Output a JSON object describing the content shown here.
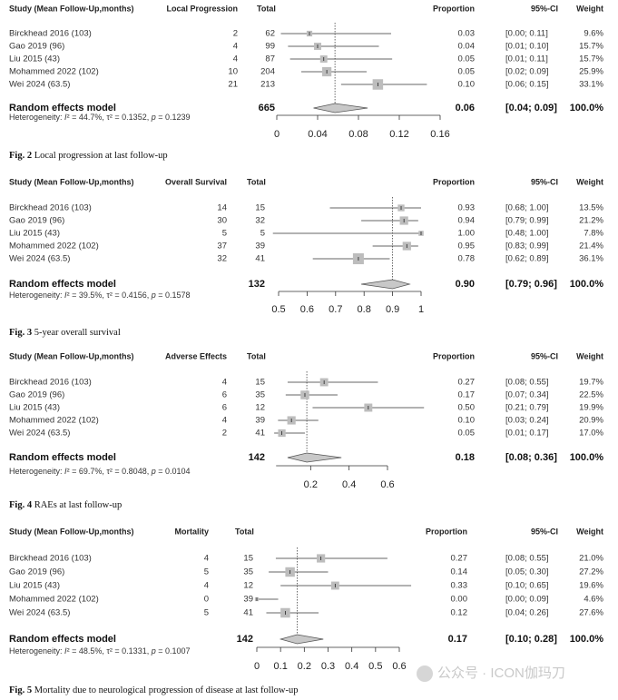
{
  "common": {
    "study_header": "Study (Mean Follow-Up,months)",
    "total_header": "Total",
    "proportion_header": "Proportion",
    "ci_header": "95%-CI",
    "weight_header": "Weight",
    "re_label": "Random effects model",
    "het_prefix": "Heterogeneity: ",
    "studies": [
      "Birckhead 2016 (103)",
      "Gao 2019 (96)",
      "Liu 2015 (43)",
      "Mohammed 2022 (102)",
      "Wei 2024 (63.5)"
    ]
  },
  "watermark": "公众号 · ICON伽玛刀",
  "chart_data": [
    {
      "type": "forest",
      "caption_num": "Fig. 2",
      "caption": "Local progression at last follow-up",
      "event_header": "Local Progression",
      "events": [
        "2",
        "4",
        "4",
        "10",
        "21"
      ],
      "totals": [
        "62",
        "99",
        "87",
        "204",
        "213"
      ],
      "proportions": [
        "0.03",
        "0.04",
        "0.05",
        "0.05",
        "0.10"
      ],
      "estimates": [
        0.032,
        0.04,
        0.046,
        0.049,
        0.099
      ],
      "ci_text": [
        "[0.00; 0.11]",
        "[0.01; 0.10]",
        "[0.01; 0.11]",
        "[0.02; 0.09]",
        "[0.06; 0.15]"
      ],
      "ci": [
        [
          0.004,
          0.112
        ],
        [
          0.011,
          0.1
        ],
        [
          0.013,
          0.113
        ],
        [
          0.024,
          0.088
        ],
        [
          0.063,
          0.147
        ]
      ],
      "weights": [
        "9.6%",
        "15.7%",
        "15.7%",
        "25.9%",
        "33.1%"
      ],
      "weight_values": [
        9.6,
        15.7,
        15.7,
        25.9,
        33.1
      ],
      "pooled": {
        "total": "665",
        "proportion": "0.06",
        "ci_text": "[0.04; 0.09]",
        "weight": "100.0%",
        "estimate": 0.057,
        "ci": [
          0.036,
          0.089
        ]
      },
      "heterogeneity": {
        "i2": "44.7%",
        "tau2": "0.1352",
        "p": "0.1239"
      },
      "xlim": [
        0,
        0.16
      ],
      "ticks": [
        "0",
        "0.04",
        "0.08",
        "0.12",
        "0.16"
      ],
      "tick_values": [
        0,
        0.04,
        0.08,
        0.12,
        0.16
      ]
    },
    {
      "type": "forest",
      "caption_num": "Fig. 3",
      "caption": "5-year overall survival",
      "event_header": "Overall Survival",
      "events": [
        "14",
        "30",
        "5",
        "37",
        "32"
      ],
      "totals": [
        "15",
        "32",
        "5",
        "39",
        "41"
      ],
      "proportions": [
        "0.93",
        "0.94",
        "1.00",
        "0.95",
        "0.78"
      ],
      "estimates": [
        0.93,
        0.94,
        1.0,
        0.95,
        0.78
      ],
      "ci_text": [
        "[0.68; 1.00]",
        "[0.79; 0.99]",
        "[0.48; 1.00]",
        "[0.83; 0.99]",
        "[0.62; 0.89]"
      ],
      "ci": [
        [
          0.68,
          1.0
        ],
        [
          0.79,
          0.99
        ],
        [
          0.48,
          1.0
        ],
        [
          0.83,
          0.99
        ],
        [
          0.62,
          0.89
        ]
      ],
      "weights": [
        "13.5%",
        "21.2%",
        "7.8%",
        "21.4%",
        "36.1%"
      ],
      "weight_values": [
        13.5,
        21.2,
        7.8,
        21.4,
        36.1
      ],
      "pooled": {
        "total": "132",
        "proportion": "0.90",
        "ci_text": "[0.79; 0.96]",
        "weight": "100.0%",
        "estimate": 0.9,
        "ci": [
          0.79,
          0.96
        ]
      },
      "heterogeneity": {
        "i2": "39.5%",
        "tau2": "0.4156",
        "p": "0.1578"
      },
      "xlim": [
        0.5,
        1
      ],
      "ticks": [
        "0.5",
        "0.6",
        "0.7",
        "0.8",
        "0.9",
        "1"
      ],
      "tick_values": [
        0.5,
        0.6,
        0.7,
        0.8,
        0.9,
        1
      ]
    },
    {
      "type": "forest",
      "caption_num": "Fig. 4",
      "caption": "RAEs at last follow-up",
      "event_header": "Adverse Effects",
      "events": [
        "4",
        "6",
        "6",
        "4",
        "2"
      ],
      "totals": [
        "15",
        "35",
        "12",
        "39",
        "41"
      ],
      "proportions": [
        "0.27",
        "0.17",
        "0.50",
        "0.10",
        "0.05"
      ],
      "estimates": [
        0.27,
        0.17,
        0.5,
        0.1,
        0.05
      ],
      "ci_text": [
        "[0.08; 0.55]",
        "[0.07; 0.34]",
        "[0.21; 0.79]",
        "[0.03; 0.24]",
        "[0.01; 0.17]"
      ],
      "ci": [
        [
          0.08,
          0.55
        ],
        [
          0.07,
          0.34
        ],
        [
          0.21,
          0.79
        ],
        [
          0.03,
          0.24
        ],
        [
          0.01,
          0.17
        ]
      ],
      "weights": [
        "19.7%",
        "22.5%",
        "19.9%",
        "20.9%",
        "17.0%"
      ],
      "weight_values": [
        19.7,
        22.5,
        19.9,
        20.9,
        17.0
      ],
      "pooled": {
        "total": "142",
        "proportion": "0.18",
        "ci_text": "[0.08; 0.36]",
        "weight": "100.0%",
        "estimate": 0.18,
        "ci": [
          0.08,
          0.36
        ]
      },
      "heterogeneity": {
        "i2": "69.7%",
        "tau2": "0.8048",
        "p": "0.0104"
      },
      "xlim": [
        0,
        0.6
      ],
      "ticks": [
        "0.2",
        "0.4",
        "0.6"
      ],
      "tick_values": [
        0.2,
        0.4,
        0.6
      ]
    },
    {
      "type": "forest",
      "caption_num": "Fig. 5",
      "caption": "Mortality due to neurological progression of disease at last follow-up",
      "event_header": "Mortality",
      "events": [
        "4",
        "5",
        "4",
        "0",
        "5"
      ],
      "totals": [
        "15",
        "35",
        "12",
        "39",
        "41"
      ],
      "proportions": [
        "0.27",
        "0.14",
        "0.33",
        "0.00",
        "0.12"
      ],
      "estimates": [
        0.27,
        0.14,
        0.33,
        0.0,
        0.12
      ],
      "ci_text": [
        "[0.08; 0.55]",
        "[0.05; 0.30]",
        "[0.10; 0.65]",
        "[0.00; 0.09]",
        "[0.04; 0.26]"
      ],
      "ci": [
        [
          0.08,
          0.55
        ],
        [
          0.05,
          0.3
        ],
        [
          0.1,
          0.65
        ],
        [
          0.0,
          0.09
        ],
        [
          0.04,
          0.26
        ]
      ],
      "weights": [
        "21.0%",
        "27.2%",
        "19.6%",
        "4.6%",
        "27.6%"
      ],
      "weight_values": [
        21.0,
        27.2,
        19.6,
        4.6,
        27.6
      ],
      "pooled": {
        "total": "142",
        "proportion": "0.17",
        "ci_text": "[0.10; 0.28]",
        "weight": "100.0%",
        "estimate": 0.17,
        "ci": [
          0.1,
          0.28
        ]
      },
      "heterogeneity": {
        "i2": "48.5%",
        "tau2": "0.1331",
        "p": "0.1007"
      },
      "xlim": [
        0,
        0.6
      ],
      "ticks": [
        "0",
        "0.1",
        "0.2",
        "0.3",
        "0.4",
        "0.5",
        "0.6"
      ],
      "tick_values": [
        0,
        0.1,
        0.2,
        0.3,
        0.4,
        0.5,
        0.6
      ]
    }
  ]
}
